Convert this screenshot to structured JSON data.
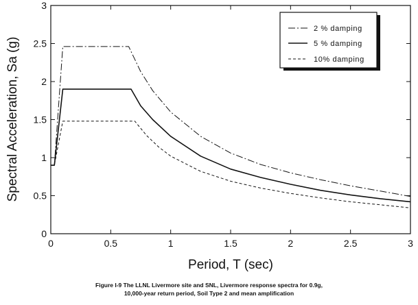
{
  "chart_data": {
    "type": "line",
    "xlabel": "Period, T (sec)",
    "ylabel": "Spectral Acceleration, Sa (g)",
    "xlim": [
      0,
      3
    ],
    "ylim": [
      0,
      3
    ],
    "xticks": [
      "0",
      "0.5",
      "1",
      "1.5",
      "2",
      "2.5",
      "3"
    ],
    "yticks": [
      "0",
      "0.5",
      "1",
      "1.5",
      "2",
      "2.5",
      "3"
    ],
    "grid": false,
    "legend_position": "top-right",
    "series": [
      {
        "name": "2 % damping",
        "style": "dash-dot",
        "color": "#111111",
        "x": [
          0,
          0.03,
          0.1,
          0.2,
          0.3,
          0.4,
          0.5,
          0.6,
          0.65,
          0.75,
          0.85,
          1.0,
          1.25,
          1.5,
          1.75,
          2.0,
          2.25,
          2.5,
          2.75,
          3.0
        ],
        "y": [
          0.9,
          0.9,
          2.46,
          2.46,
          2.46,
          2.46,
          2.46,
          2.46,
          2.46,
          2.13,
          1.88,
          1.6,
          1.28,
          1.06,
          0.91,
          0.8,
          0.71,
          0.63,
          0.56,
          0.49
        ]
      },
      {
        "name": "5 % damping",
        "style": "solid",
        "color": "#111111",
        "x": [
          0,
          0.03,
          0.1,
          0.2,
          0.3,
          0.4,
          0.5,
          0.6,
          0.67,
          0.75,
          0.85,
          1.0,
          1.25,
          1.5,
          1.75,
          2.0,
          2.25,
          2.5,
          2.75,
          3.0
        ],
        "y": [
          0.9,
          0.9,
          1.9,
          1.9,
          1.9,
          1.9,
          1.9,
          1.9,
          1.9,
          1.68,
          1.5,
          1.28,
          1.02,
          0.85,
          0.74,
          0.65,
          0.57,
          0.51,
          0.46,
          0.42
        ]
      },
      {
        "name": "10% damping",
        "style": "dashed",
        "color": "#111111",
        "x": [
          0,
          0.03,
          0.1,
          0.2,
          0.3,
          0.4,
          0.5,
          0.6,
          0.7,
          0.8,
          0.9,
          1.0,
          1.25,
          1.5,
          1.75,
          2.0,
          2.25,
          2.5,
          2.75,
          3.0
        ],
        "y": [
          0.9,
          0.9,
          1.48,
          1.48,
          1.48,
          1.48,
          1.48,
          1.48,
          1.48,
          1.29,
          1.14,
          1.02,
          0.82,
          0.69,
          0.6,
          0.53,
          0.47,
          0.42,
          0.38,
          0.34
        ]
      }
    ]
  },
  "caption": {
    "line1": "Figure I-9  The LLNL Livermore site and SNL, Livermore response spectra for 0.9g,",
    "line2": "10,000-year return period, Soil Type 2 and mean amplification"
  }
}
